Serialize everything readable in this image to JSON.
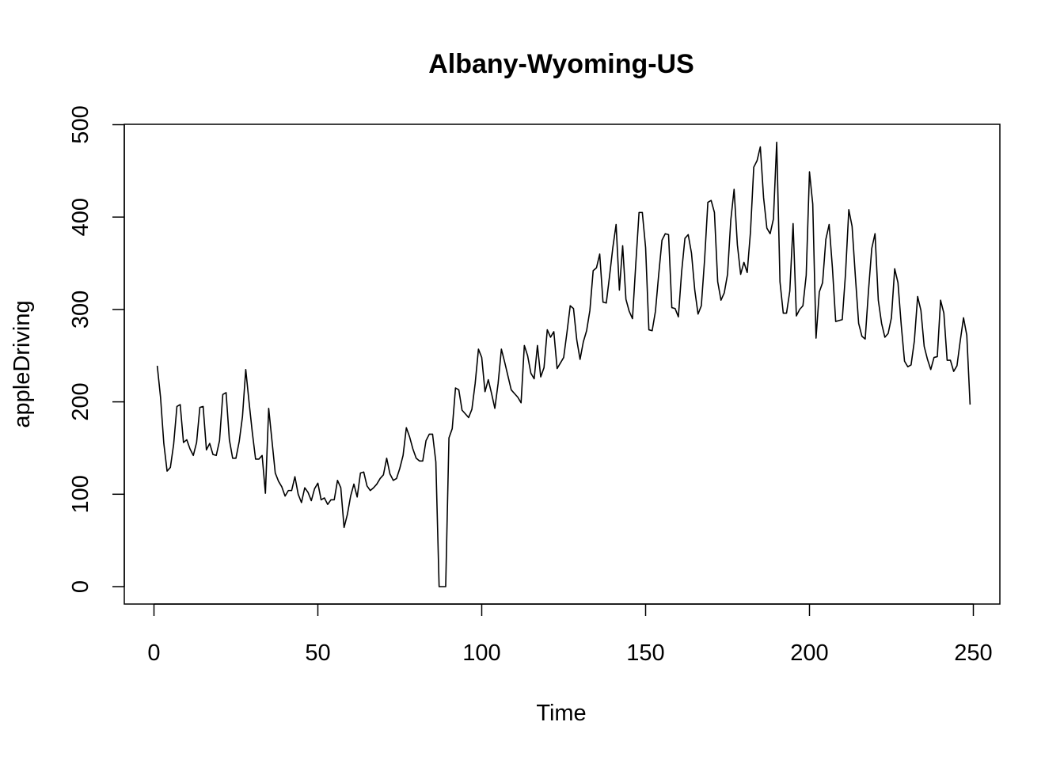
{
  "chart_data": {
    "type": "line",
    "title": "Albany-Wyoming-US",
    "xlabel": "Time",
    "ylabel": "appleDriving",
    "xlim": [
      1,
      248
    ],
    "ylim": [
      0,
      480
    ],
    "x_ticks": [
      0,
      50,
      100,
      150,
      200,
      250
    ],
    "y_ticks": [
      0,
      100,
      200,
      300,
      400,
      500
    ],
    "grid": false,
    "legend": "none",
    "line_color": "#000000",
    "series": [
      {
        "x_start": 1,
        "values": [
          239,
          205,
          155,
          125,
          129,
          154,
          195,
          197,
          156,
          159,
          149,
          142,
          156,
          194,
          195,
          148,
          155,
          143,
          142,
          158,
          208,
          210,
          159,
          139,
          139,
          157,
          184,
          235,
          200,
          167,
          138,
          138,
          142,
          101,
          193,
          158,
          123,
          114,
          108,
          98,
          104,
          104,
          119,
          100,
          91,
          107,
          102,
          93,
          106,
          112,
          94,
          96,
          89,
          94,
          94,
          115,
          107,
          64,
          78,
          98,
          111,
          97,
          123,
          124,
          109,
          104,
          107,
          111,
          117,
          121,
          139,
          122,
          115,
          117,
          128,
          142,
          172,
          162,
          149,
          139,
          136,
          136,
          158,
          165,
          165,
          135,
          0,
          0,
          0,
          161,
          171,
          215,
          213,
          191,
          187,
          183,
          192,
          220,
          257,
          248,
          211,
          224,
          209,
          193,
          220,
          257,
          243,
          228,
          213,
          209,
          205,
          199,
          261,
          250,
          231,
          225,
          261,
          227,
          237,
          278,
          270,
          276,
          236,
          242,
          248,
          275,
          304,
          301,
          267,
          246,
          265,
          277,
          299,
          342,
          345,
          360,
          308,
          307,
          336,
          367,
          392,
          321,
          369,
          311,
          298,
          290,
          349,
          405,
          405,
          367,
          278,
          277,
          298,
          338,
          375,
          382,
          381,
          302,
          301,
          292,
          341,
          377,
          381,
          361,
          321,
          295,
          304,
          354,
          416,
          418,
          405,
          330,
          310,
          318,
          338,
          397,
          430,
          370,
          338,
          351,
          340,
          384,
          454,
          461,
          476,
          421,
          388,
          382,
          398,
          481,
          330,
          296,
          296,
          320,
          393,
          293,
          300,
          304,
          337,
          449,
          414,
          269,
          319,
          329,
          376,
          392,
          345,
          287,
          288,
          289,
          339,
          408,
          390,
          336,
          285,
          271,
          268,
          320,
          366,
          382,
          310,
          285,
          270,
          274,
          291,
          344,
          329,
          283,
          244,
          238,
          240,
          266,
          314,
          299,
          260,
          246,
          235,
          248,
          249,
          310,
          296,
          245,
          245,
          233,
          239,
          266,
          291,
          272,
          197
        ]
      }
    ]
  }
}
